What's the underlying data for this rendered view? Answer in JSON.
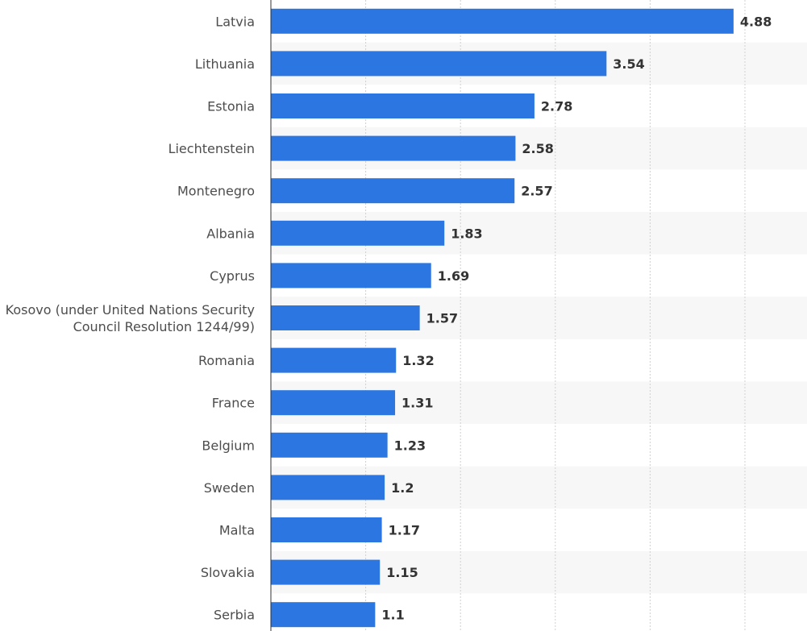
{
  "chart_data": {
    "type": "bar",
    "orientation": "horizontal",
    "title": "",
    "xlabel": "",
    "ylabel": "",
    "categories": [
      [
        "Latvia"
      ],
      [
        "Lithuania"
      ],
      [
        "Estonia"
      ],
      [
        "Liechtenstein"
      ],
      [
        "Montenegro"
      ],
      [
        "Albania"
      ],
      [
        "Cyprus"
      ],
      [
        "Kosovo (under United Nations Security",
        "Council Resolution 1244/99)"
      ],
      [
        "Romania"
      ],
      [
        "France"
      ],
      [
        "Belgium"
      ],
      [
        "Sweden"
      ],
      [
        "Malta"
      ],
      [
        "Slovakia"
      ],
      [
        "Serbia"
      ]
    ],
    "values": [
      4.88,
      3.54,
      2.78,
      2.58,
      2.57,
      1.83,
      1.69,
      1.57,
      1.32,
      1.31,
      1.23,
      1.2,
      1.17,
      1.15,
      1.1
    ],
    "value_labels": [
      "4.88",
      "3.54",
      "2.78",
      "2.58",
      "2.57",
      "1.83",
      "1.69",
      "1.57",
      "1.32",
      "1.31",
      "1.23",
      "1.2",
      "1.17",
      "1.15",
      "1.1"
    ],
    "xlim": [
      0,
      5.6
    ],
    "gridlines": [
      1,
      2,
      3,
      4,
      5
    ],
    "grid": true,
    "bar_color": "#2b76e0",
    "band_color": "#f7f7f7",
    "grid_color": "#d0d0d0"
  }
}
